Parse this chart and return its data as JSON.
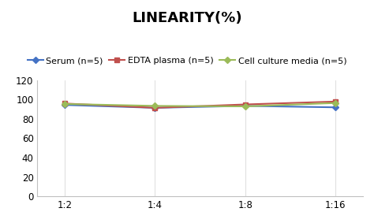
{
  "title": "LINEARITY(%)",
  "x_labels": [
    "1:2",
    "1:4",
    "1:8",
    "1:16"
  ],
  "x_positions": [
    0,
    1,
    2,
    3
  ],
  "series": [
    {
      "label": "Serum (n=5)",
      "values": [
        94.5,
        91.5,
        93.5,
        92.0
      ],
      "color": "#4472C4",
      "marker": "D",
      "markersize": 4,
      "linewidth": 1.5
    },
    {
      "label": "EDTA plasma (n=5)",
      "values": [
        96.0,
        91.5,
        95.0,
        98.0
      ],
      "color": "#C0504D",
      "marker": "s",
      "markersize": 4,
      "linewidth": 1.5
    },
    {
      "label": "Cell culture media (n=5)",
      "values": [
        95.5,
        93.5,
        93.0,
        96.5
      ],
      "color": "#9BBB59",
      "marker": "D",
      "markersize": 4,
      "linewidth": 1.5
    }
  ],
  "ylim": [
    0,
    120
  ],
  "yticks": [
    0,
    20,
    40,
    60,
    80,
    100,
    120
  ],
  "background_color": "#ffffff",
  "title_fontsize": 13,
  "legend_fontsize": 8,
  "tick_fontsize": 8.5
}
